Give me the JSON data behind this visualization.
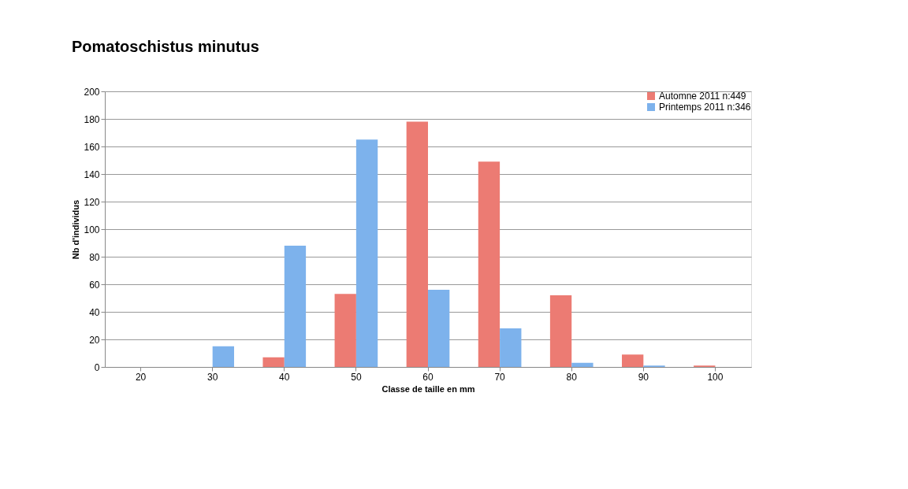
{
  "chart_data": {
    "type": "bar",
    "title": "Pomatoschistus minutus",
    "xlabel": "Classe de taille en mm",
    "ylabel": "Nb d'individus",
    "categories": [
      "20",
      "30",
      "40",
      "50",
      "60",
      "70",
      "80",
      "90",
      "100"
    ],
    "series": [
      {
        "name": "Automne 2011 n:449",
        "color": "#ec7b73",
        "values": [
          0,
          0,
          7,
          53,
          178,
          149,
          52,
          9,
          1
        ]
      },
      {
        "name": "Printemps 2011 n:346",
        "color": "#7db2ec",
        "values": [
          0,
          15,
          88,
          165,
          56,
          28,
          3,
          1,
          0
        ]
      }
    ],
    "ylim": [
      0,
      200
    ],
    "yticks": [
      0,
      20,
      40,
      60,
      80,
      100,
      120,
      140,
      160,
      180,
      200
    ],
    "grid": "y",
    "legend": "top right"
  }
}
